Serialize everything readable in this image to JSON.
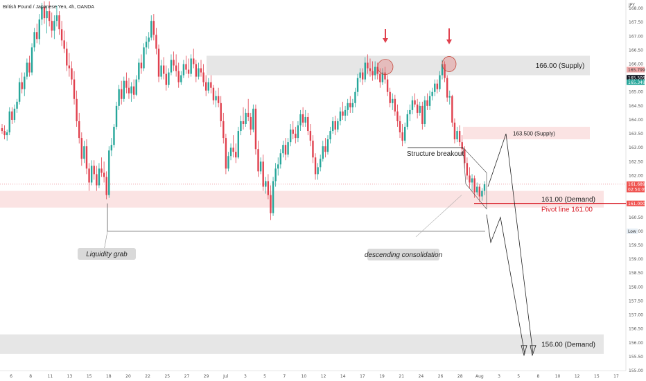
{
  "header": {
    "symbol": "British Pound / Japanese Yen, 4h, OANDA"
  },
  "chart_data": {
    "type": "candlestick",
    "currency": "JPY",
    "ylim": [
      155.0,
      168.3
    ],
    "y_ticks": [
      155.0,
      155.5,
      156.0,
      156.5,
      157.0,
      157.5,
      158.0,
      158.5,
      159.0,
      159.5,
      160.0,
      160.5,
      161.0,
      161.5,
      162.0,
      162.5,
      163.0,
      163.5,
      164.0,
      164.5,
      165.0,
      165.5,
      166.0,
      166.5,
      167.0,
      167.5,
      168.0
    ],
    "x_ticks": [
      "6",
      "8",
      "11",
      "13",
      "15",
      "18",
      "20",
      "22",
      "25",
      "27",
      "29",
      "Jul",
      "3",
      "5",
      "7",
      "10",
      "12",
      "14",
      "17",
      "19",
      "21",
      "24",
      "26",
      "28",
      "Aug",
      "3",
      "5",
      "8",
      "10",
      "12",
      "15",
      "17"
    ],
    "price_labels": [
      {
        "text": "165.799",
        "value": 165.8,
        "color": "#f0a9a9"
      },
      {
        "text": "165.509",
        "value": 165.51,
        "color": "#131722"
      },
      {
        "text": "165.349",
        "value": 165.35,
        "color": "#26a69a"
      },
      {
        "text": "161.689",
        "value": 161.69,
        "color": "#ef5350"
      },
      {
        "text": "02:54:09",
        "value": 161.5,
        "color": "#ef5350"
      },
      {
        "text": "161.000",
        "value": 161.0,
        "color": "#ef5350"
      },
      {
        "text": "Low",
        "value": 160.0,
        "color": "#e6eef5"
      }
    ],
    "zones": [
      {
        "label": "166.00 (Supply)",
        "from": 165.6,
        "to": 166.3,
        "color": "#e6e6e6"
      },
      {
        "label": "163.500 (Supply)",
        "from": 163.3,
        "to": 163.75,
        "color": "#fbe3e3"
      },
      {
        "label": "161.00 (Demand)",
        "from": 160.85,
        "to": 161.45,
        "color": "#fbe3e3"
      },
      {
        "label": "156.00 (Demand)",
        "from": 155.6,
        "to": 156.3,
        "color": "#e6e6e6"
      }
    ],
    "annotations": [
      {
        "text": "Structure breakout"
      },
      {
        "text": "Pivot line 161.00"
      },
      {
        "text": "Liquidity grab"
      },
      {
        "text": "descending consolidation"
      }
    ],
    "series_ohlc": [
      [
        163.7,
        163.85,
        163.5,
        163.6
      ],
      [
        163.6,
        163.8,
        163.3,
        163.45
      ],
      [
        163.45,
        163.65,
        163.25,
        163.55
      ],
      [
        163.55,
        164.45,
        163.45,
        164.3
      ],
      [
        164.3,
        164.45,
        163.85,
        164.0
      ],
      [
        164.0,
        164.55,
        163.9,
        164.4
      ],
      [
        164.4,
        164.75,
        164.25,
        164.65
      ],
      [
        164.65,
        165.5,
        164.55,
        165.35
      ],
      [
        165.35,
        165.7,
        164.95,
        165.1
      ],
      [
        165.1,
        165.7,
        164.85,
        165.55
      ],
      [
        165.55,
        166.2,
        165.45,
        166.05
      ],
      [
        166.05,
        166.3,
        165.55,
        165.7
      ],
      [
        165.7,
        166.75,
        165.6,
        166.6
      ],
      [
        166.6,
        167.3,
        166.45,
        167.15
      ],
      [
        167.15,
        167.45,
        166.75,
        166.9
      ],
      [
        166.9,
        167.8,
        166.7,
        167.6
      ],
      [
        167.6,
        168.2,
        167.4,
        168.05
      ],
      [
        168.05,
        168.25,
        167.45,
        167.65
      ],
      [
        167.65,
        168.1,
        167.1,
        167.9
      ],
      [
        167.9,
        168.25,
        167.35,
        167.55
      ],
      [
        167.55,
        167.85,
        166.95,
        167.2
      ],
      [
        167.2,
        167.75,
        166.9,
        167.55
      ],
      [
        167.55,
        168.1,
        167.35,
        167.75
      ],
      [
        167.75,
        167.9,
        167.05,
        167.25
      ],
      [
        167.25,
        167.55,
        166.65,
        166.85
      ],
      [
        166.85,
        167.2,
        166.4,
        166.55
      ],
      [
        166.55,
        166.8,
        165.75,
        165.95
      ],
      [
        165.95,
        166.4,
        165.55,
        165.85
      ],
      [
        165.85,
        166.1,
        165.25,
        165.45
      ],
      [
        165.45,
        165.75,
        164.55,
        164.75
      ],
      [
        164.75,
        165.05,
        163.75,
        163.95
      ],
      [
        163.95,
        164.25,
        163.15,
        163.35
      ],
      [
        163.35,
        163.55,
        162.35,
        162.6
      ],
      [
        162.6,
        163.25,
        162.45,
        163.05
      ],
      [
        163.05,
        163.3,
        162.05,
        162.25
      ],
      [
        162.25,
        162.45,
        161.45,
        161.75
      ],
      [
        161.75,
        162.55,
        161.65,
        162.35
      ],
      [
        162.35,
        162.55,
        161.85,
        162.05
      ],
      [
        162.05,
        162.35,
        161.45,
        161.65
      ],
      [
        161.65,
        162.45,
        161.55,
        162.25
      ],
      [
        162.25,
        162.65,
        161.95,
        162.1
      ],
      [
        162.1,
        162.5,
        161.75,
        161.95
      ],
      [
        161.95,
        162.15,
        161.15,
        161.3
      ],
      [
        161.3,
        163.05,
        161.2,
        162.9
      ],
      [
        162.9,
        163.35,
        162.7,
        163.1
      ],
      [
        163.1,
        163.85,
        163.0,
        163.75
      ],
      [
        163.75,
        164.65,
        163.65,
        164.5
      ],
      [
        164.5,
        165.25,
        164.35,
        165.1
      ],
      [
        165.1,
        165.4,
        164.55,
        164.75
      ],
      [
        164.75,
        165.55,
        164.65,
        165.4
      ],
      [
        165.4,
        165.7,
        164.95,
        165.15
      ],
      [
        165.15,
        165.5,
        164.75,
        164.95
      ],
      [
        164.95,
        165.35,
        164.65,
        165.2
      ],
      [
        165.2,
        165.45,
        164.75,
        164.9
      ],
      [
        164.9,
        165.6,
        164.85,
        165.45
      ],
      [
        165.45,
        166.2,
        165.35,
        166.05
      ],
      [
        166.05,
        166.35,
        165.65,
        165.85
      ],
      [
        165.85,
        166.75,
        165.75,
        166.6
      ],
      [
        166.6,
        167.0,
        166.35,
        166.8
      ],
      [
        166.8,
        167.15,
        166.55,
        166.95
      ],
      [
        166.95,
        167.75,
        166.85,
        167.55
      ],
      [
        167.55,
        167.8,
        166.85,
        167.05
      ],
      [
        167.05,
        167.3,
        166.35,
        166.55
      ],
      [
        166.55,
        166.7,
        165.35,
        165.55
      ],
      [
        165.55,
        166.15,
        165.45,
        165.95
      ],
      [
        165.95,
        166.25,
        165.45,
        165.65
      ],
      [
        165.65,
        165.95,
        165.05,
        165.25
      ],
      [
        165.25,
        165.85,
        165.15,
        165.7
      ],
      [
        165.7,
        166.35,
        165.6,
        166.15
      ],
      [
        166.15,
        166.45,
        165.75,
        165.95
      ],
      [
        165.95,
        166.35,
        165.55,
        165.75
      ],
      [
        165.75,
        166.05,
        165.15,
        165.35
      ],
      [
        165.35,
        165.75,
        165.25,
        165.6
      ],
      [
        165.6,
        166.15,
        165.5,
        166.0
      ],
      [
        166.0,
        166.3,
        165.65,
        165.8
      ],
      [
        165.8,
        166.2,
        165.5,
        165.65
      ],
      [
        165.65,
        166.35,
        165.55,
        166.2
      ],
      [
        166.2,
        166.55,
        165.85,
        166.0
      ],
      [
        166.0,
        166.15,
        165.35,
        165.55
      ],
      [
        165.55,
        166.05,
        165.45,
        165.85
      ],
      [
        165.85,
        166.15,
        165.55,
        165.7
      ],
      [
        165.7,
        166.0,
        165.2,
        165.35
      ],
      [
        165.35,
        165.6,
        164.85,
        165.05
      ],
      [
        165.05,
        165.5,
        164.95,
        165.35
      ],
      [
        165.35,
        165.6,
        164.95,
        165.15
      ],
      [
        165.15,
        165.25,
        164.55,
        164.7
      ],
      [
        164.7,
        165.05,
        164.45,
        164.85
      ],
      [
        164.85,
        165.15,
        164.45,
        164.6
      ],
      [
        164.6,
        164.85,
        163.75,
        163.95
      ],
      [
        163.95,
        164.25,
        163.15,
        163.35
      ],
      [
        163.35,
        163.5,
        162.05,
        162.25
      ],
      [
        162.25,
        162.85,
        162.15,
        162.7
      ],
      [
        162.7,
        163.15,
        162.55,
        163.0
      ],
      [
        163.0,
        163.45,
        162.65,
        162.85
      ],
      [
        162.85,
        163.15,
        162.45,
        162.65
      ],
      [
        162.65,
        163.75,
        162.6,
        163.6
      ],
      [
        163.6,
        164.15,
        163.45,
        163.95
      ],
      [
        163.95,
        164.45,
        163.65,
        163.85
      ],
      [
        163.85,
        164.4,
        163.75,
        164.25
      ],
      [
        164.25,
        164.75,
        163.95,
        164.1
      ],
      [
        164.1,
        164.25,
        163.45,
        163.65
      ],
      [
        163.65,
        164.55,
        163.55,
        164.4
      ],
      [
        164.4,
        164.55,
        162.75,
        162.95
      ],
      [
        162.95,
        163.25,
        161.95,
        162.15
      ],
      [
        162.15,
        162.65,
        162.05,
        162.5
      ],
      [
        162.5,
        162.75,
        161.45,
        161.6
      ],
      [
        161.6,
        161.95,
        161.35,
        161.8
      ],
      [
        161.8,
        162.05,
        161.15,
        161.3
      ],
      [
        161.3,
        161.65,
        160.4,
        160.65
      ],
      [
        160.65,
        161.95,
        160.55,
        161.8
      ],
      [
        161.8,
        162.45,
        161.6,
        162.25
      ],
      [
        162.25,
        162.65,
        162.0,
        162.4
      ],
      [
        162.4,
        162.95,
        162.25,
        162.8
      ],
      [
        162.8,
        163.25,
        162.65,
        163.1
      ],
      [
        163.1,
        163.35,
        162.55,
        162.75
      ],
      [
        162.75,
        163.35,
        162.65,
        163.2
      ],
      [
        163.2,
        163.85,
        163.05,
        163.65
      ],
      [
        163.65,
        163.95,
        163.3,
        163.5
      ],
      [
        163.5,
        163.75,
        163.15,
        163.35
      ],
      [
        163.35,
        163.95,
        163.2,
        163.8
      ],
      [
        163.8,
        164.35,
        163.6,
        164.2
      ],
      [
        164.2,
        164.45,
        163.75,
        163.9
      ],
      [
        163.9,
        164.35,
        163.75,
        164.1
      ],
      [
        164.1,
        164.25,
        163.45,
        163.6
      ],
      [
        163.6,
        163.85,
        163.05,
        163.25
      ],
      [
        163.25,
        163.45,
        162.45,
        162.65
      ],
      [
        162.65,
        162.8,
        161.85,
        162.05
      ],
      [
        162.05,
        162.45,
        161.85,
        162.3
      ],
      [
        162.3,
        162.75,
        162.15,
        162.6
      ],
      [
        162.6,
        163.25,
        162.5,
        163.05
      ],
      [
        163.05,
        163.35,
        162.65,
        162.85
      ],
      [
        162.85,
        163.45,
        162.75,
        163.3
      ],
      [
        163.3,
        163.75,
        163.15,
        163.6
      ],
      [
        163.6,
        164.1,
        163.5,
        163.95
      ],
      [
        163.95,
        164.15,
        163.45,
        163.65
      ],
      [
        163.65,
        164.05,
        163.55,
        163.95
      ],
      [
        163.95,
        164.45,
        163.8,
        164.3
      ],
      [
        164.3,
        164.65,
        164.0,
        164.15
      ],
      [
        164.15,
        164.5,
        163.95,
        164.35
      ],
      [
        164.35,
        164.75,
        164.15,
        164.6
      ],
      [
        164.6,
        164.85,
        164.25,
        164.45
      ],
      [
        164.45,
        164.75,
        164.25,
        164.6
      ],
      [
        164.6,
        165.15,
        164.45,
        165.0
      ],
      [
        165.0,
        165.65,
        164.85,
        165.5
      ],
      [
        165.5,
        165.85,
        165.35,
        165.7
      ],
      [
        165.7,
        165.85,
        165.25,
        165.45
      ],
      [
        165.45,
        166.25,
        165.35,
        166.05
      ],
      [
        166.05,
        166.35,
        165.65,
        165.85
      ],
      [
        165.85,
        166.2,
        165.55,
        165.75
      ],
      [
        165.75,
        166.1,
        165.4,
        165.6
      ],
      [
        165.6,
        166.1,
        165.45,
        165.9
      ],
      [
        165.9,
        166.05,
        165.45,
        165.65
      ],
      [
        165.65,
        165.85,
        165.15,
        165.35
      ],
      [
        165.35,
        165.85,
        165.25,
        165.7
      ],
      [
        165.7,
        165.9,
        165.3,
        165.45
      ],
      [
        165.45,
        165.6,
        164.85,
        165.0
      ],
      [
        165.0,
        165.15,
        164.45,
        164.6
      ],
      [
        164.6,
        164.95,
        164.35,
        164.75
      ],
      [
        164.75,
        164.9,
        164.15,
        164.3
      ],
      [
        164.3,
        164.55,
        163.75,
        163.95
      ],
      [
        163.95,
        164.15,
        163.35,
        163.55
      ],
      [
        163.55,
        163.85,
        163.05,
        163.25
      ],
      [
        163.25,
        163.9,
        163.15,
        163.75
      ],
      [
        163.75,
        164.35,
        163.65,
        164.2
      ],
      [
        164.2,
        164.55,
        163.95,
        164.35
      ],
      [
        164.35,
        164.85,
        164.2,
        164.7
      ],
      [
        164.7,
        164.95,
        164.45,
        164.55
      ],
      [
        164.55,
        164.75,
        164.05,
        164.25
      ],
      [
        164.25,
        164.65,
        164.15,
        164.5
      ],
      [
        164.5,
        164.65,
        163.65,
        163.85
      ],
      [
        163.85,
        164.85,
        163.75,
        164.7
      ],
      [
        164.7,
        164.95,
        164.35,
        164.5
      ],
      [
        164.5,
        165.05,
        164.35,
        164.85
      ],
      [
        164.85,
        165.15,
        164.7,
        165.0
      ],
      [
        165.0,
        165.45,
        164.85,
        165.3
      ],
      [
        165.3,
        165.45,
        164.95,
        165.1
      ],
      [
        165.1,
        165.75,
        165.0,
        165.6
      ],
      [
        165.6,
        166.15,
        165.45,
        166.0
      ],
      [
        166.0,
        166.1,
        165.35,
        165.5
      ],
      [
        165.5,
        165.6,
        164.65,
        164.8
      ],
      [
        164.8,
        165.05,
        164.55,
        164.85
      ],
      [
        164.85,
        164.9,
        163.75,
        163.9
      ],
      [
        163.9,
        164.05,
        163.15,
        163.3
      ],
      [
        163.3,
        163.75,
        163.2,
        163.6
      ],
      [
        163.6,
        163.8,
        163.05,
        163.2
      ],
      [
        163.2,
        163.45,
        162.75,
        162.95
      ],
      [
        162.95,
        163.05,
        162.25,
        162.45
      ],
      [
        162.45,
        162.65,
        161.85,
        162.0
      ],
      [
        162.0,
        162.3,
        161.55,
        161.75
      ],
      [
        161.75,
        162.05,
        161.45,
        161.9
      ],
      [
        161.9,
        162.0,
        161.2,
        161.4
      ],
      [
        161.4,
        161.75,
        161.3,
        161.6
      ],
      [
        161.6,
        161.7,
        161.05,
        161.25
      ],
      [
        161.25,
        161.55,
        161.1,
        161.45
      ],
      [
        161.45,
        161.8,
        161.3,
        161.69
      ]
    ]
  }
}
